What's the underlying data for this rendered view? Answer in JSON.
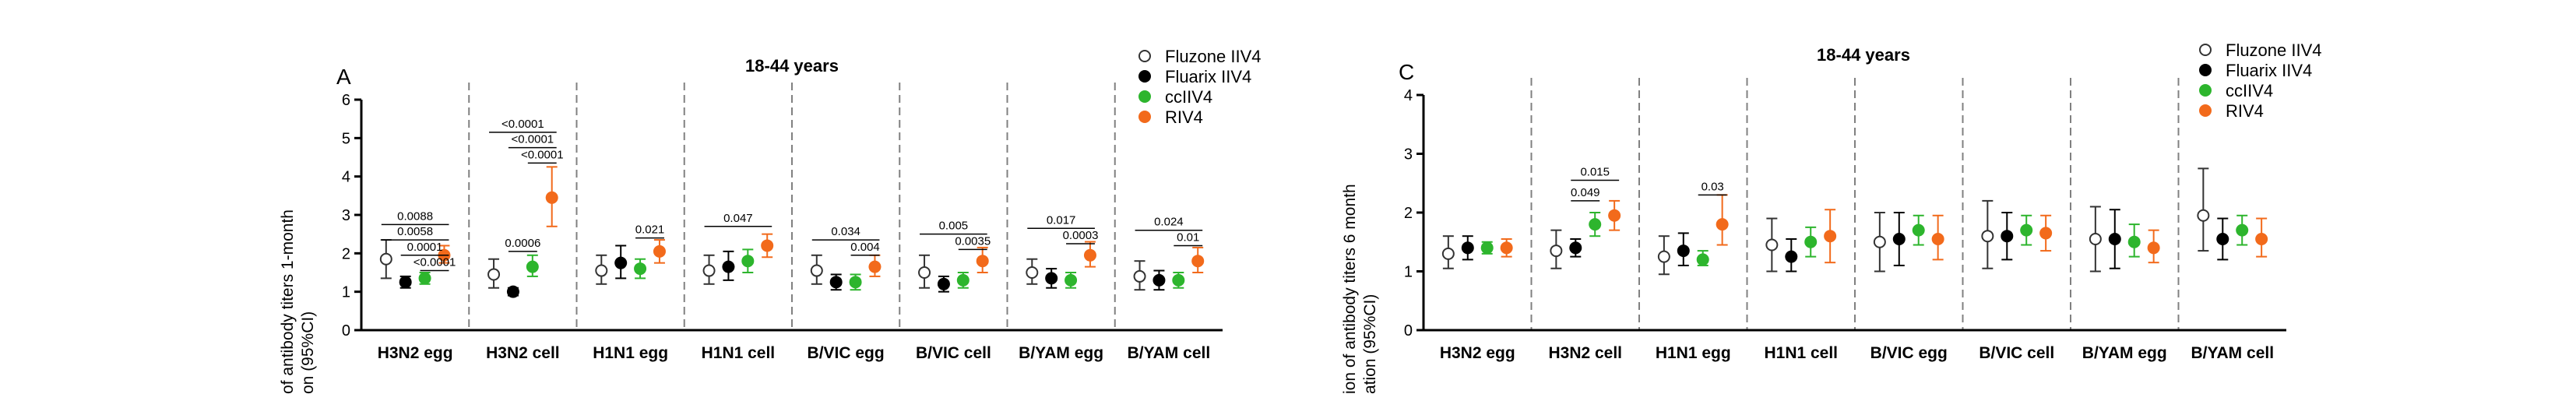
{
  "colors": {
    "fluzone": "#333333",
    "fluarix": "#000000",
    "cciiv4": "#2db52d",
    "riv4": "#f26a1b",
    "axis": "#000000",
    "divider": "#808080"
  },
  "chart_data": [
    {
      "type": "scatter",
      "panel_label": "A",
      "title": "18-44 years",
      "ylabel_lines": [
        "of antibody titers 1-month",
        "on (95%CI)"
      ],
      "ylim": [
        0,
        6
      ],
      "yticks": [
        "0",
        "1",
        "2",
        "3",
        "4",
        "5",
        "6"
      ],
      "categories": [
        "H3N2 egg",
        "H3N2 cell",
        "H1N1 egg",
        "H1N1 cell",
        "B/VIC egg",
        "B/VIC cell",
        "B/YAM egg",
        "B/YAM cell"
      ],
      "legend": {
        "placement": "top-right",
        "entries": [
          "Fluzone IIV4",
          "Fluarix IIV4",
          "ccIIV4",
          "RIV4"
        ]
      },
      "series": [
        {
          "name": "Fluzone IIV4",
          "marker": "open-circle",
          "values": [
            1.85,
            1.45,
            1.55,
            1.55,
            1.55,
            1.5,
            1.5,
            1.4
          ],
          "ci_low": [
            1.35,
            1.1,
            1.2,
            1.2,
            1.2,
            1.1,
            1.2,
            1.05
          ],
          "ci_high": [
            2.35,
            1.85,
            1.95,
            1.95,
            1.95,
            1.95,
            1.85,
            1.8
          ]
        },
        {
          "name": "Fluarix IIV4",
          "marker": "filled-circle",
          "values": [
            1.25,
            1.0,
            1.75,
            1.65,
            1.25,
            1.2,
            1.35,
            1.3
          ],
          "ci_low": [
            1.1,
            0.9,
            1.35,
            1.3,
            1.05,
            1.0,
            1.1,
            1.05
          ],
          "ci_high": [
            1.4,
            1.1,
            2.2,
            2.05,
            1.45,
            1.4,
            1.6,
            1.55
          ]
        },
        {
          "name": "ccIIV4",
          "marker": "filled-circle",
          "values": [
            1.35,
            1.65,
            1.6,
            1.8,
            1.25,
            1.3,
            1.3,
            1.3
          ],
          "ci_low": [
            1.2,
            1.4,
            1.35,
            1.5,
            1.05,
            1.1,
            1.1,
            1.1
          ],
          "ci_high": [
            1.5,
            1.95,
            1.85,
            2.1,
            1.45,
            1.5,
            1.5,
            1.5
          ]
        },
        {
          "name": "RIV4",
          "marker": "filled-circle",
          "values": [
            1.95,
            3.45,
            2.05,
            2.2,
            1.65,
            1.8,
            1.95,
            1.8
          ],
          "ci_low": [
            1.75,
            2.7,
            1.75,
            1.9,
            1.4,
            1.5,
            1.65,
            1.5
          ],
          "ci_high": [
            2.2,
            4.25,
            2.35,
            2.5,
            1.95,
            2.15,
            2.3,
            2.15
          ]
        }
      ],
      "annotations": [
        {
          "category": 0,
          "from": 0,
          "to": 3,
          "y": 2.75,
          "text": "0.0088"
        },
        {
          "category": 0,
          "from": 0,
          "to": 3,
          "y": 2.35,
          "text": "0.0058"
        },
        {
          "category": 0,
          "from": 1,
          "to": 3,
          "y": 1.95,
          "text": "0.0001"
        },
        {
          "category": 0,
          "from": 2,
          "to": 3,
          "y": 1.55,
          "text": "<0.0001"
        },
        {
          "category": 1,
          "from": 0,
          "to": 3,
          "y": 5.15,
          "text": "<0.0001"
        },
        {
          "category": 1,
          "from": 1,
          "to": 3,
          "y": 4.75,
          "text": "<0.0001"
        },
        {
          "category": 1,
          "from": 2,
          "to": 3,
          "y": 4.35,
          "text": "<0.0001"
        },
        {
          "category": 1,
          "from": 1,
          "to": 2,
          "y": 2.05,
          "text": "0.0006"
        },
        {
          "category": 2,
          "from": 2,
          "to": 3,
          "y": 2.4,
          "text": "0.021"
        },
        {
          "category": 3,
          "from": 0,
          "to": 3,
          "y": 2.7,
          "text": "0.047"
        },
        {
          "category": 4,
          "from": 0,
          "to": 3,
          "y": 2.35,
          "text": "0.034"
        },
        {
          "category": 4,
          "from": 2,
          "to": 3,
          "y": 1.95,
          "text": "0.004"
        },
        {
          "category": 5,
          "from": 0,
          "to": 3,
          "y": 2.5,
          "text": "0.005"
        },
        {
          "category": 5,
          "from": 2,
          "to": 3,
          "y": 2.1,
          "text": "0.0035"
        },
        {
          "category": 6,
          "from": 0,
          "to": 3,
          "y": 2.65,
          "text": "0.017"
        },
        {
          "category": 6,
          "from": 2,
          "to": 3,
          "y": 2.25,
          "text": "0.0003"
        },
        {
          "category": 7,
          "from": 0,
          "to": 3,
          "y": 2.6,
          "text": "0.024"
        },
        {
          "category": 7,
          "from": 2,
          "to": 3,
          "y": 2.2,
          "text": "0.01"
        }
      ]
    },
    {
      "type": "scatter",
      "panel_label": "C",
      "title": "18-44 years",
      "ylabel_lines": [
        "ion of antibody titers 6 month",
        "ation (95%CI)"
      ],
      "ylim": [
        0,
        4
      ],
      "yticks": [
        "0",
        "1",
        "2",
        "3",
        "4"
      ],
      "categories": [
        "H3N2 egg",
        "H3N2 cell",
        "H1N1 egg",
        "H1N1 cell",
        "B/VIC egg",
        "B/VIC cell",
        "B/YAM egg",
        "B/YAM cell"
      ],
      "legend": {
        "placement": "top-right",
        "entries": [
          "Fluzone IIV4",
          "Fluarix IIV4",
          "ccIIV4",
          "RIV4"
        ]
      },
      "series": [
        {
          "name": "Fluzone IIV4",
          "marker": "open-circle",
          "values": [
            1.3,
            1.35,
            1.25,
            1.45,
            1.5,
            1.6,
            1.55,
            1.95
          ],
          "ci_low": [
            1.05,
            1.05,
            0.95,
            1.0,
            1.0,
            1.05,
            1.0,
            1.35
          ],
          "ci_high": [
            1.6,
            1.7,
            1.6,
            1.9,
            2.0,
            2.2,
            2.1,
            2.75
          ]
        },
        {
          "name": "Fluarix IIV4",
          "marker": "filled-circle",
          "values": [
            1.4,
            1.4,
            1.35,
            1.25,
            1.55,
            1.6,
            1.55,
            1.55
          ],
          "ci_low": [
            1.2,
            1.25,
            1.1,
            1.0,
            1.1,
            1.2,
            1.05,
            1.2
          ],
          "ci_high": [
            1.6,
            1.55,
            1.65,
            1.55,
            2.0,
            2.0,
            2.05,
            1.9
          ]
        },
        {
          "name": "ccIIV4",
          "marker": "filled-circle",
          "values": [
            1.4,
            1.8,
            1.2,
            1.5,
            1.7,
            1.7,
            1.5,
            1.7
          ],
          "ci_low": [
            1.3,
            1.6,
            1.1,
            1.25,
            1.45,
            1.45,
            1.25,
            1.45
          ],
          "ci_high": [
            1.5,
            2.0,
            1.35,
            1.75,
            1.95,
            1.95,
            1.8,
            1.95
          ]
        },
        {
          "name": "RIV4",
          "marker": "filled-circle",
          "values": [
            1.4,
            1.95,
            1.8,
            1.6,
            1.55,
            1.65,
            1.4,
            1.55
          ],
          "ci_low": [
            1.25,
            1.7,
            1.45,
            1.15,
            1.2,
            1.35,
            1.15,
            1.25
          ],
          "ci_high": [
            1.55,
            2.2,
            2.3,
            2.05,
            1.95,
            1.95,
            1.7,
            1.9
          ]
        }
      ],
      "annotations": [
        {
          "category": 1,
          "from": 1,
          "to": 3,
          "y": 2.55,
          "text": "0.015"
        },
        {
          "category": 1,
          "from": 1,
          "to": 2,
          "y": 2.2,
          "text": "0.049"
        },
        {
          "category": 2,
          "from": 2,
          "to": 3,
          "y": 2.3,
          "text": "0.03"
        }
      ]
    }
  ]
}
